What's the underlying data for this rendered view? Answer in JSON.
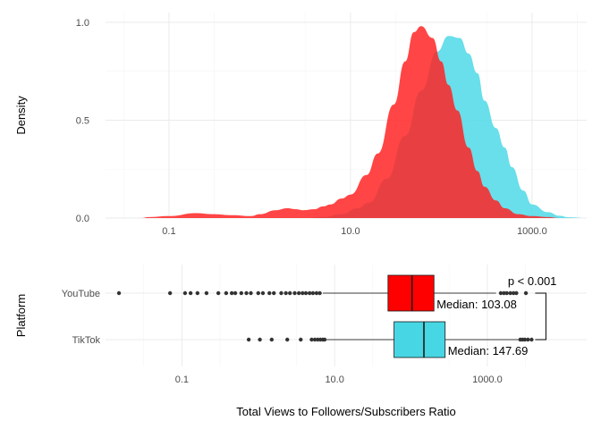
{
  "chart_data": [
    {
      "type": "area",
      "kind": "density",
      "ylabel": "Density",
      "x_scale": "log10",
      "xlim": [
        0.02,
        4000
      ],
      "ylim": [
        0,
        1.05
      ],
      "x_ticks": [
        0.1,
        10.0,
        1000.0
      ],
      "x_tick_labels": [
        "0.1",
        "10.0",
        "1000.0"
      ],
      "y_ticks": [
        0,
        0.5,
        1
      ],
      "y_tick_labels": [
        "0.0",
        "0.5",
        "1.0"
      ],
      "grid": true,
      "series": [
        {
          "platform": "TikTok",
          "color": "#4dd9e6",
          "x": [
            3,
            5,
            8,
            12,
            16,
            25,
            40,
            60,
            90,
            120,
            160,
            200,
            250,
            300,
            400,
            500,
            600,
            800,
            1000,
            1500,
            2000,
            2500,
            4000
          ],
          "y": [
            0,
            0.005,
            0.02,
            0.05,
            0.08,
            0.2,
            0.42,
            0.65,
            0.85,
            0.93,
            0.92,
            0.84,
            0.74,
            0.6,
            0.46,
            0.36,
            0.26,
            0.14,
            0.07,
            0.03,
            0.012,
            0.004,
            0
          ]
        },
        {
          "platform": "YouTube",
          "color": "#ff2424",
          "x": [
            0.05,
            0.06,
            0.1,
            0.2,
            0.3,
            0.5,
            0.8,
            1,
            1.5,
            2,
            2.5,
            3,
            4,
            5,
            6,
            8,
            10,
            15,
            20,
            30,
            40,
            50,
            60,
            80,
            100,
            120,
            150,
            200,
            250,
            300,
            400,
            500,
            700,
            1000,
            1500,
            2000,
            4000
          ],
          "y": [
            0,
            0.005,
            0.01,
            0.025,
            0.02,
            0.015,
            0.01,
            0.02,
            0.04,
            0.05,
            0.045,
            0.04,
            0.045,
            0.06,
            0.07,
            0.1,
            0.12,
            0.22,
            0.33,
            0.58,
            0.8,
            0.95,
            0.98,
            0.92,
            0.8,
            0.68,
            0.55,
            0.36,
            0.24,
            0.16,
            0.09,
            0.05,
            0.02,
            0.01,
            0.005,
            0,
            0
          ]
        }
      ]
    },
    {
      "type": "box",
      "xlabel": "Total Views to Followers/Subscribers Ratio",
      "ylabel": "Platform",
      "x_scale": "log10",
      "xlim": [
        0.01,
        20000
      ],
      "x_ticks": [
        0.1,
        10.0,
        1000.0
      ],
      "x_tick_labels": [
        "0.1",
        "10.0",
        "1000.0"
      ],
      "categories": [
        "YouTube",
        "TikTok"
      ],
      "grid": true,
      "series": [
        {
          "platform": "YouTube",
          "color": "#ff0000",
          "median": 103.08,
          "median_label": "Median: 103.08",
          "q1": 50,
          "q3": 200,
          "whisker_low": 7,
          "whisker_high": 1300,
          "outliers": [
            0.015,
            0.07,
            0.11,
            0.13,
            0.16,
            0.21,
            0.3,
            0.38,
            0.45,
            0.5,
            0.6,
            0.7,
            0.8,
            1.0,
            1.15,
            1.4,
            1.6,
            2.0,
            2.3,
            2.6,
            3.0,
            3.4,
            3.8,
            4.2,
            4.7,
            5.2,
            5.8,
            6.4,
            1500,
            1650,
            1800,
            2000,
            2200,
            2400,
            3200
          ]
        },
        {
          "platform": "TikTok",
          "color": "#47d6e3",
          "median": 147.69,
          "median_label": "Median: 147.69",
          "q1": 60,
          "q3": 280,
          "whisker_low": 7.5,
          "whisker_high": 2600,
          "outliers": [
            0.75,
            1.05,
            1.5,
            2.4,
            3.6,
            5.0,
            5.5,
            6.0,
            6.5,
            7.0,
            7.4,
            2700,
            2900,
            3100,
            3400,
            3800
          ]
        }
      ],
      "annotation": "p < 0.001"
    }
  ]
}
